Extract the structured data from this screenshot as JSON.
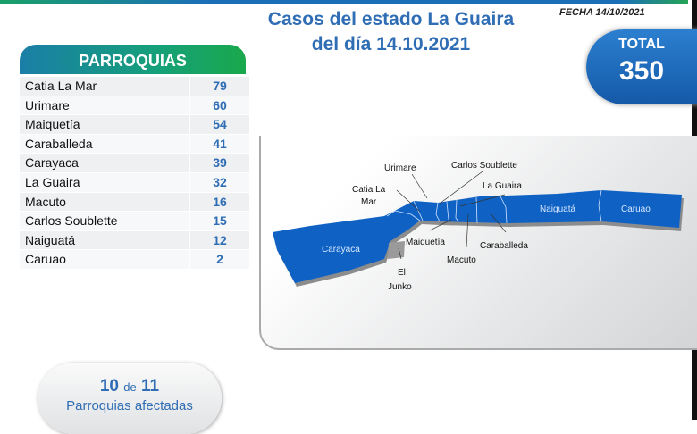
{
  "title": {
    "line1": "Casos del estado La Guaira",
    "line2": "del día 14.10.2021"
  },
  "fecha": "FECHA 14/10/2021",
  "total": {
    "label": "TOTAL",
    "value": "350"
  },
  "table": {
    "header": "PARROQUIAS",
    "rows": [
      {
        "name": "Catia La Mar",
        "cases": "79"
      },
      {
        "name": "Urimare",
        "cases": "60"
      },
      {
        "name": "Maiquetía",
        "cases": "54"
      },
      {
        "name": "Caraballeda",
        "cases": "41"
      },
      {
        "name": "Carayaca",
        "cases": "39"
      },
      {
        "name": "La Guaira",
        "cases": "32"
      },
      {
        "name": "Macuto",
        "cases": "16"
      },
      {
        "name": "Carlos Soublette",
        "cases": "15"
      },
      {
        "name": "Naiguatá",
        "cases": "12"
      },
      {
        "name": "Caruao",
        "cases": "2"
      }
    ]
  },
  "map": {
    "colors": {
      "affected": "#0f62c4",
      "unaffected": "#9a9a9a"
    },
    "labels": {
      "urimare": "Urimare",
      "carlos": "Carlos Soublette",
      "catia1": "Catia La",
      "catia2": "Mar",
      "laguaira": "La Guaira",
      "naiguata": "Naiguatá",
      "caruao": "Caruao",
      "carayaca": "Carayaca",
      "maiquetia": "Maiquetía",
      "caraballeda": "Caraballeda",
      "macuto": "Macuto",
      "eljunko1": "El",
      "eljunko2": "Junko"
    }
  },
  "summary": {
    "affected": "10",
    "de": "de",
    "total": "11",
    "label": "Parroquias  afectadas"
  }
}
